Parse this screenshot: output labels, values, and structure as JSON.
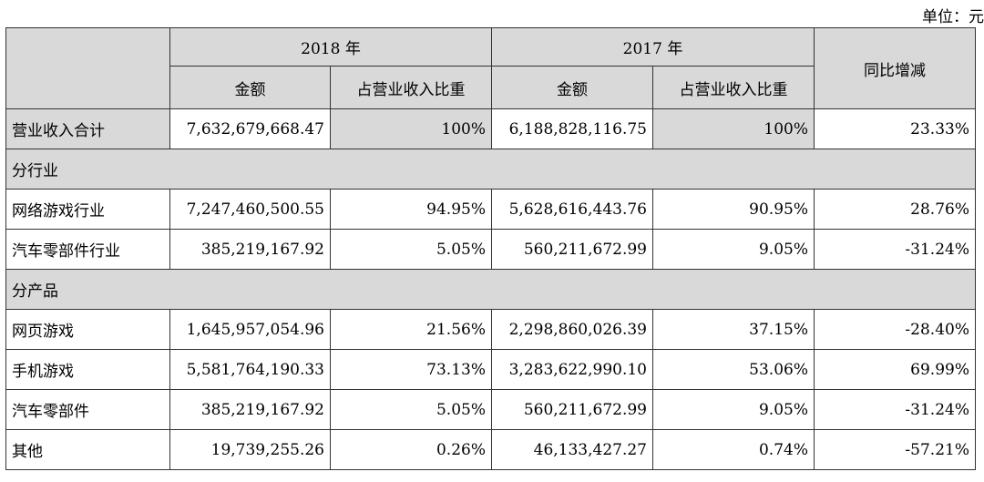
{
  "unit_label": "单位：元",
  "header": {
    "year_2018": "2018 年",
    "year_2017": "2017 年",
    "yoy": "同比增减",
    "amount": "金额",
    "share": "占营业收入比重"
  },
  "total_row": {
    "label": "营业收入合计",
    "amount_2018": "7,632,679,668.47",
    "share_2018": "100%",
    "amount_2017": "6,188,828,116.75",
    "share_2017": "100%",
    "yoy": "23.33%"
  },
  "section_industry": "分行业",
  "industry_rows": [
    {
      "label": "网络游戏行业",
      "amount_2018": "7,247,460,500.55",
      "share_2018": "94.95%",
      "amount_2017": "5,628,616,443.76",
      "share_2017": "90.95%",
      "yoy": "28.76%"
    },
    {
      "label": "汽车零部件行业",
      "amount_2018": "385,219,167.92",
      "share_2018": "5.05%",
      "amount_2017": "560,211,672.99",
      "share_2017": "9.05%",
      "yoy": "-31.24%"
    }
  ],
  "section_product": "分产品",
  "product_rows": [
    {
      "label": "网页游戏",
      "amount_2018": "1,645,957,054.96",
      "share_2018": "21.56%",
      "amount_2017": "2,298,860,026.39",
      "share_2017": "37.15%",
      "yoy": "-28.40%"
    },
    {
      "label": "手机游戏",
      "amount_2018": "5,581,764,190.33",
      "share_2018": "73.13%",
      "amount_2017": "3,283,622,990.10",
      "share_2017": "53.06%",
      "yoy": "69.99%"
    },
    {
      "label": "汽车零部件",
      "amount_2018": "385,219,167.92",
      "share_2018": "5.05%",
      "amount_2017": "560,211,672.99",
      "share_2017": "9.05%",
      "yoy": "-31.24%"
    },
    {
      "label": "其他",
      "amount_2018": "19,739,255.26",
      "share_2018": "0.26%",
      "amount_2017": "46,133,427.27",
      "share_2017": "0.74%",
      "yoy": "-57.21%"
    }
  ],
  "colors": {
    "header_bg": "#d9d9d9",
    "border": "#333333"
  }
}
